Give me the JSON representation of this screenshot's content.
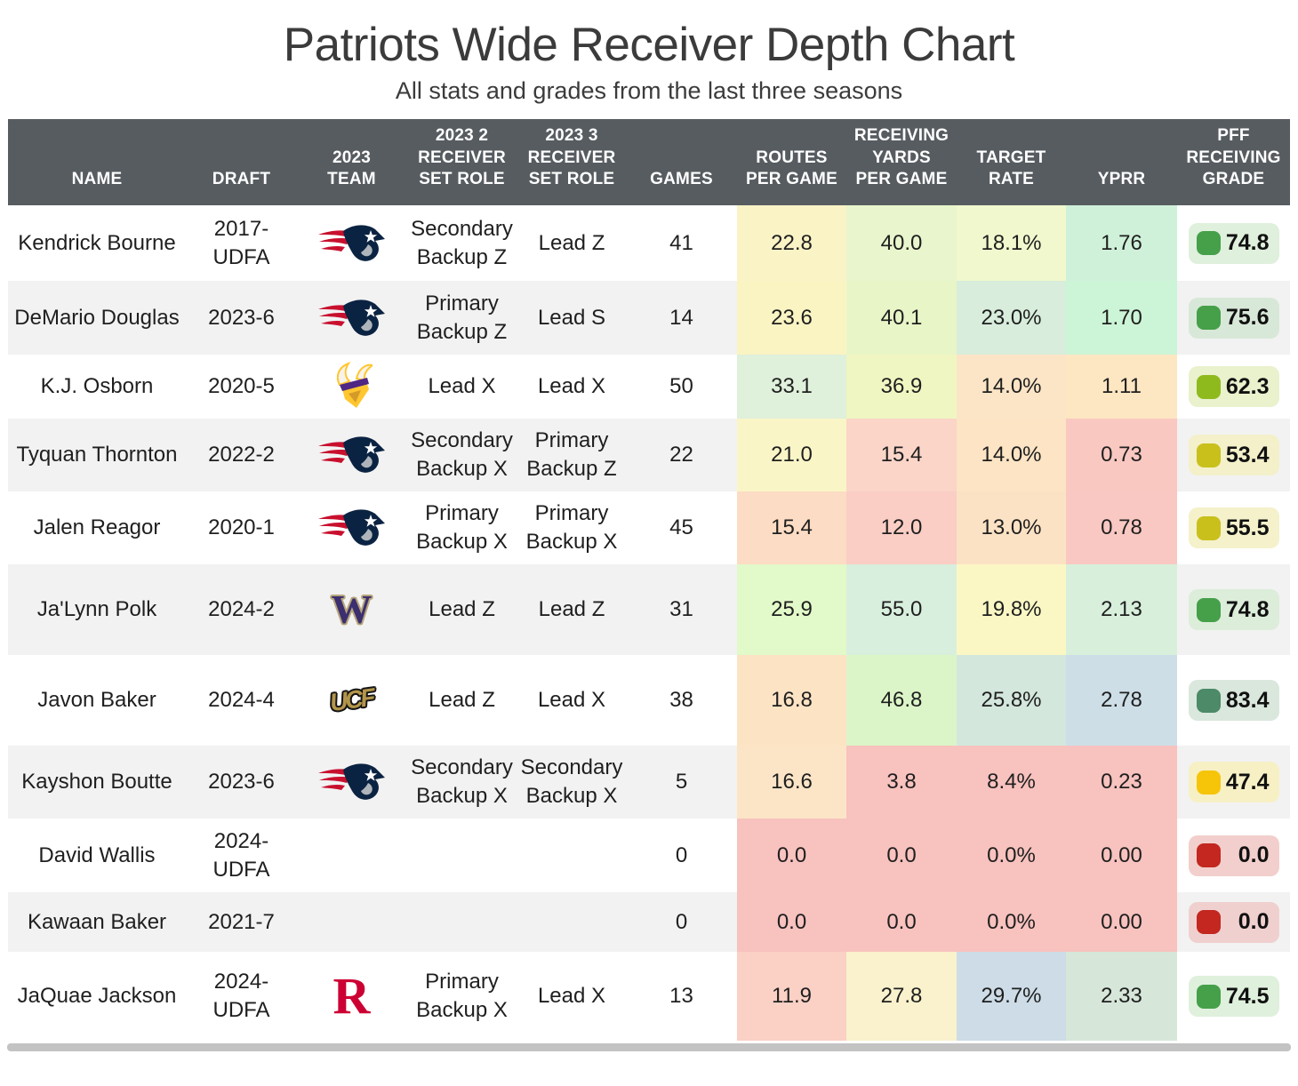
{
  "chart_data": {
    "type": "table",
    "title": "Patriots Wide Receiver Depth Chart",
    "subtitle": "All stats and grades from the last three seasons",
    "columns": [
      "NAME",
      "DRAFT",
      "2023\nTEAM",
      "2023 2\nRECEIVER\nSET ROLE",
      "2023 3\nRECEIVER\nSET ROLE",
      "GAMES",
      "ROUTES\nPER GAME",
      "RECEIVING\nYARDS\nPER GAME",
      "TARGET\nRATE",
      "YPRR",
      "PFF\nRECEIVING\nGRADE"
    ],
    "rows": [
      {
        "name": "Kendrick Bourne",
        "draft": "2017-UDFA",
        "team": "patriots",
        "role2": "Secondary Backup Z",
        "role3": "Lead Z",
        "games": "41",
        "routes_per_game": {
          "v": "22.8",
          "bg": "#FAF3C6"
        },
        "rec_yards_per_game": {
          "v": "40.0",
          "bg": "#E9F5CC"
        },
        "target_rate": {
          "v": "18.1%",
          "bg": "#F2F8CE"
        },
        "yprr": {
          "v": "1.76",
          "bg": "#CFF1D9"
        },
        "pff_grade": {
          "v": "74.8",
          "dot": "#45A049",
          "pill": "#DFF0DC"
        }
      },
      {
        "name": "DeMario Douglas",
        "draft": "2023-6",
        "team": "patriots",
        "role2": "Primary Backup Z",
        "role3": "Lead S",
        "games": "14",
        "routes_per_game": {
          "v": "23.6",
          "bg": "#FAF4C3"
        },
        "rec_yards_per_game": {
          "v": "40.1",
          "bg": "#E8F5C7"
        },
        "target_rate": {
          "v": "23.0%",
          "bg": "#D8EDDB"
        },
        "yprr": {
          "v": "1.70",
          "bg": "#CCF4D6"
        },
        "pff_grade": {
          "v": "75.6",
          "dot": "#45A049",
          "pill": "#D8E8D8"
        }
      },
      {
        "name": "K.J. Osborn",
        "draft": "2020-5",
        "team": "vikings",
        "role2": "Lead X",
        "role3": "Lead X",
        "games": "50",
        "routes_per_game": {
          "v": "33.1",
          "bg": "#DFF0DB"
        },
        "rec_yards_per_game": {
          "v": "36.9",
          "bg": "#F0F6C1"
        },
        "target_rate": {
          "v": "14.0%",
          "bg": "#FCE5C6"
        },
        "yprr": {
          "v": "1.11",
          "bg": "#FDE6C2"
        },
        "pff_grade": {
          "v": "62.3",
          "dot": "#8FBA1E",
          "pill": "#E9F1CD"
        }
      },
      {
        "name": "Tyquan Thornton",
        "draft": "2022-2",
        "team": "patriots",
        "role2": "Secondary Backup X",
        "role3": "Primary Backup Z",
        "games": "22",
        "routes_per_game": {
          "v": "21.0",
          "bg": "#FAF5C7"
        },
        "rec_yards_per_game": {
          "v": "15.4",
          "bg": "#FBD5C8"
        },
        "target_rate": {
          "v": "14.0%",
          "bg": "#FCE4C4"
        },
        "yprr": {
          "v": "0.73",
          "bg": "#F9C8C1"
        },
        "pff_grade": {
          "v": "53.4",
          "dot": "#C9C01C",
          "pill": "#F3F0CA"
        }
      },
      {
        "name": "Jalen Reagor",
        "draft": "2020-1",
        "team": "patriots",
        "role2": "Primary Backup X",
        "role3": "Primary Backup X",
        "games": "45",
        "routes_per_game": {
          "v": "15.4",
          "bg": "#FCDCC4"
        },
        "rec_yards_per_game": {
          "v": "12.0",
          "bg": "#FACEC4"
        },
        "target_rate": {
          "v": "13.0%",
          "bg": "#FCE2C5"
        },
        "yprr": {
          "v": "0.78",
          "bg": "#F9C8C2"
        },
        "pff_grade": {
          "v": "55.5",
          "dot": "#C9C01C",
          "pill": "#F4F1CB"
        }
      },
      {
        "name": "Ja'Lynn Polk",
        "draft": "2024-2",
        "team": "washington",
        "role2": "Lead Z",
        "role3": "Lead Z",
        "games": "31",
        "routes_per_game": {
          "v": "25.9",
          "bg": "#E2F9C9"
        },
        "rec_yards_per_game": {
          "v": "55.0",
          "bg": "#D8EFDD"
        },
        "target_rate": {
          "v": "19.8%",
          "bg": "#FAF7C5"
        },
        "yprr": {
          "v": "2.13",
          "bg": "#D7EFDB"
        },
        "pff_grade": {
          "v": "74.8",
          "dot": "#45A049",
          "pill": "#DCEDDA"
        }
      },
      {
        "name": "Javon Baker",
        "draft": "2024-4",
        "team": "ucf",
        "role2": "Lead Z",
        "role3": "Lead X",
        "games": "38",
        "routes_per_game": {
          "v": "16.8",
          "bg": "#FCE3C4"
        },
        "rec_yards_per_game": {
          "v": "46.8",
          "bg": "#DCF5C8"
        },
        "target_rate": {
          "v": "25.8%",
          "bg": "#D4E7DD"
        },
        "yprr": {
          "v": "2.78",
          "bg": "#CDDEE7"
        },
        "pff_grade": {
          "v": "83.4",
          "dot": "#4C8A68",
          "pill": "#D9E7DD"
        }
      },
      {
        "name": "Kayshon Boutte",
        "draft": "2023-6",
        "team": "patriots",
        "role2": "Secondary Backup X",
        "role3": "Secondary Backup X",
        "games": "5",
        "routes_per_game": {
          "v": "16.6",
          "bg": "#FCE5C7"
        },
        "rec_yards_per_game": {
          "v": "3.8",
          "bg": "#F8C2BE"
        },
        "target_rate": {
          "v": "8.4%",
          "bg": "#F8C2BE"
        },
        "yprr": {
          "v": "0.23",
          "bg": "#F8C2BE"
        },
        "pff_grade": {
          "v": "47.4",
          "dot": "#F6C50A",
          "pill": "#F7F0C5"
        }
      },
      {
        "name": "David Wallis",
        "draft": "2024-UDFA",
        "team": "",
        "role2": "",
        "role3": "",
        "games": "0",
        "routes_per_game": {
          "v": "0.0",
          "bg": "#F8C2BE"
        },
        "rec_yards_per_game": {
          "v": "0.0",
          "bg": "#F8C2BE"
        },
        "target_rate": {
          "v": "0.0%",
          "bg": "#F8C2BE"
        },
        "yprr": {
          "v": "0.00",
          "bg": "#F8C2BE"
        },
        "pff_grade": {
          "v": "0.0",
          "dot": "#C3271F",
          "pill": "#F2CFCC"
        }
      },
      {
        "name": "Kawaan Baker",
        "draft": "2021-7",
        "team": "",
        "role2": "",
        "role3": "",
        "games": "0",
        "routes_per_game": {
          "v": "0.0",
          "bg": "#F8C2BE"
        },
        "rec_yards_per_game": {
          "v": "0.0",
          "bg": "#F8C2BE"
        },
        "target_rate": {
          "v": "0.0%",
          "bg": "#F8C2BE"
        },
        "yprr": {
          "v": "0.00",
          "bg": "#F8C2BE"
        },
        "pff_grade": {
          "v": "0.0",
          "dot": "#C3271F",
          "pill": "#EFD0CE"
        }
      },
      {
        "name": "JaQuae Jackson",
        "draft": "2024-UDFA",
        "team": "rutgers",
        "role2": "Primary Backup X",
        "role3": "Lead X",
        "games": "13",
        "routes_per_game": {
          "v": "11.9",
          "bg": "#FBD0C5"
        },
        "rec_yards_per_game": {
          "v": "27.8",
          "bg": "#FAF2CC"
        },
        "target_rate": {
          "v": "29.7%",
          "bg": "#CDDCE7"
        },
        "yprr": {
          "v": "2.33",
          "bg": "#D6E7D9"
        },
        "pff_grade": {
          "v": "74.5",
          "dot": "#45A049",
          "pill": "#DFF0DC"
        }
      }
    ]
  },
  "team_logo_letters": {
    "washington": "W",
    "ucf": "UCF",
    "rutgers": "R"
  },
  "colors": {
    "header_bg": "#575C61",
    "row_alt_bg": "#F2F2F2",
    "scrollbar": "#C3C3C3",
    "patriots_navy": "#0B2342",
    "patriots_red": "#C8102E",
    "vikings_gold": "#FFC62F",
    "vikings_purple": "#4F2683",
    "washington_purple": "#3B2F6F",
    "washington_gold": "#B7A57A",
    "ucf_gold": "#B3954B",
    "rutgers_red": "#CC0033"
  }
}
